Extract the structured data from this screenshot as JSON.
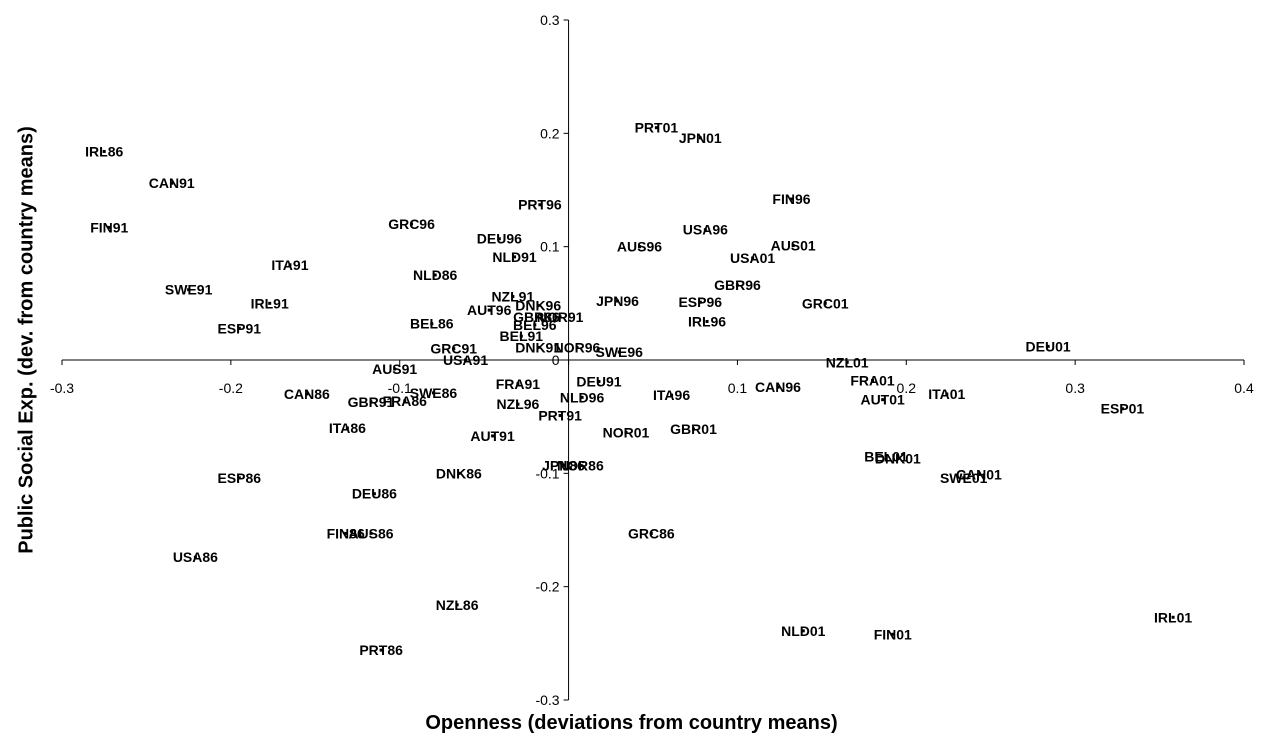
{
  "chart_data": {
    "type": "scatter",
    "title": "",
    "xlabel": "Openness (deviations from country means)",
    "ylabel": "Public Social Exp. (dev. from country means)",
    "xlim": [
      -0.3,
      0.4
    ],
    "ylim": [
      -0.3,
      0.3
    ],
    "xticks": [
      "-0.3",
      "-0.2",
      "-0.1",
      "0",
      "0.1",
      "0.2",
      "0.3",
      "0.4"
    ],
    "yticks": [
      "-0.3",
      "-0.2",
      "-0.1",
      "0",
      "0.1",
      "0.2",
      "0.3"
    ],
    "grid": false,
    "points": [
      {
        "label": "IRL86",
        "x": -0.275,
        "y": 0.184
      },
      {
        "label": "CAN91",
        "x": -0.235,
        "y": 0.156
      },
      {
        "label": "FIN91",
        "x": -0.272,
        "y": 0.117
      },
      {
        "label": "SWE91",
        "x": -0.225,
        "y": 0.062
      },
      {
        "label": "IRL91",
        "x": -0.177,
        "y": 0.05
      },
      {
        "label": "ESP91",
        "x": -0.195,
        "y": 0.028
      },
      {
        "label": "ITA91",
        "x": -0.165,
        "y": 0.084
      },
      {
        "label": "GRC96",
        "x": -0.093,
        "y": 0.12
      },
      {
        "label": "NLD86",
        "x": -0.079,
        "y": 0.075
      },
      {
        "label": "BEL86",
        "x": -0.081,
        "y": 0.032
      },
      {
        "label": "AUT96",
        "x": -0.047,
        "y": 0.044
      },
      {
        "label": "GRC91",
        "x": -0.068,
        "y": 0.01
      },
      {
        "label": "USA91",
        "x": -0.061,
        "y": 0.0
      },
      {
        "label": "AUS91",
        "x": -0.103,
        "y": -0.008
      },
      {
        "label": "CAN86",
        "x": -0.155,
        "y": -0.03
      },
      {
        "label": "GBR91",
        "x": -0.117,
        "y": -0.037
      },
      {
        "label": "FRA86",
        "x": -0.097,
        "y": -0.036
      },
      {
        "label": "SWE86",
        "x": -0.08,
        "y": -0.029
      },
      {
        "label": "ITA86",
        "x": -0.131,
        "y": -0.06
      },
      {
        "label": "DEU96",
        "x": -0.041,
        "y": 0.107
      },
      {
        "label": "NLD91",
        "x": -0.032,
        "y": 0.091
      },
      {
        "label": "PRT96",
        "x": -0.017,
        "y": 0.137
      },
      {
        "label": "NZL91",
        "x": -0.033,
        "y": 0.056
      },
      {
        "label": "DNK96",
        "x": -0.018,
        "y": 0.048
      },
      {
        "label": "GBR86",
        "x": -0.019,
        "y": 0.038
      },
      {
        "label": "BEL96",
        "x": -0.02,
        "y": 0.031
      },
      {
        "label": "NOR91",
        "x": -0.005,
        "y": 0.038
      },
      {
        "label": "BEL91",
        "x": -0.028,
        "y": 0.021
      },
      {
        "label": "DNK91",
        "x": -0.018,
        "y": 0.011
      },
      {
        "label": "NOR96",
        "x": 0.005,
        "y": 0.011
      },
      {
        "label": "SWE96",
        "x": 0.03,
        "y": 0.007
      },
      {
        "label": "FRA91",
        "x": -0.03,
        "y": -0.021
      },
      {
        "label": "DEU91",
        "x": 0.018,
        "y": -0.019
      },
      {
        "label": "NZL96",
        "x": -0.03,
        "y": -0.039
      },
      {
        "label": "NLD96",
        "x": 0.008,
        "y": -0.033
      },
      {
        "label": "PRT91",
        "x": -0.005,
        "y": -0.049
      },
      {
        "label": "AUT91",
        "x": -0.045,
        "y": -0.067
      },
      {
        "label": "DNK86",
        "x": -0.065,
        "y": -0.1
      },
      {
        "label": "DEU86",
        "x": -0.115,
        "y": -0.118
      },
      {
        "label": "ESP86",
        "x": -0.195,
        "y": -0.104
      },
      {
        "label": "FIN86",
        "x": -0.132,
        "y": -0.153
      },
      {
        "label": "AUS86",
        "x": -0.117,
        "y": -0.153
      },
      {
        "label": "USA86",
        "x": -0.221,
        "y": -0.174
      },
      {
        "label": "NZL86",
        "x": -0.066,
        "y": -0.216
      },
      {
        "label": "PRT86",
        "x": -0.111,
        "y": -0.256
      },
      {
        "label": "PRT01",
        "x": 0.052,
        "y": 0.205
      },
      {
        "label": "JPN01",
        "x": 0.078,
        "y": 0.196
      },
      {
        "label": "FIN96",
        "x": 0.132,
        "y": 0.142
      },
      {
        "label": "USA96",
        "x": 0.081,
        "y": 0.115
      },
      {
        "label": "AUS96",
        "x": 0.042,
        "y": 0.1
      },
      {
        "label": "AUS01",
        "x": 0.133,
        "y": 0.101
      },
      {
        "label": "USA01",
        "x": 0.109,
        "y": 0.09
      },
      {
        "label": "GBR96",
        "x": 0.1,
        "y": 0.066
      },
      {
        "label": "JPN96",
        "x": 0.029,
        "y": 0.052
      },
      {
        "label": "ESP96",
        "x": 0.078,
        "y": 0.051
      },
      {
        "label": "GRC01",
        "x": 0.152,
        "y": 0.05
      },
      {
        "label": "IRL96",
        "x": 0.082,
        "y": 0.034
      },
      {
        "label": "DEU01",
        "x": 0.284,
        "y": 0.012
      },
      {
        "label": "NZL01",
        "x": 0.165,
        "y": -0.002
      },
      {
        "label": "ITA96",
        "x": 0.061,
        "y": -0.031
      },
      {
        "label": "CAN96",
        "x": 0.124,
        "y": -0.024
      },
      {
        "label": "FRA01",
        "x": 0.18,
        "y": -0.018
      },
      {
        "label": "AUT01",
        "x": 0.186,
        "y": -0.035
      },
      {
        "label": "ITA01",
        "x": 0.224,
        "y": -0.03
      },
      {
        "label": "ESP01",
        "x": 0.328,
        "y": -0.043
      },
      {
        "label": "NOR01",
        "x": 0.034,
        "y": -0.064
      },
      {
        "label": "GBR01",
        "x": 0.074,
        "y": -0.061
      },
      {
        "label": "JPN86",
        "x": -0.003,
        "y": -0.093
      },
      {
        "label": "NOR86",
        "x": 0.007,
        "y": -0.093
      },
      {
        "label": "BEL01",
        "x": 0.188,
        "y": -0.085
      },
      {
        "label": "DNK01",
        "x": 0.195,
        "y": -0.087
      },
      {
        "label": "CAN01",
        "x": 0.243,
        "y": -0.101
      },
      {
        "label": "SWE01",
        "x": 0.234,
        "y": -0.104
      },
      {
        "label": "GRC86",
        "x": 0.049,
        "y": -0.153
      },
      {
        "label": "NLD01",
        "x": 0.139,
        "y": -0.239
      },
      {
        "label": "FIN01",
        "x": 0.192,
        "y": -0.242
      },
      {
        "label": "IRL01",
        "x": 0.358,
        "y": -0.227
      }
    ]
  }
}
